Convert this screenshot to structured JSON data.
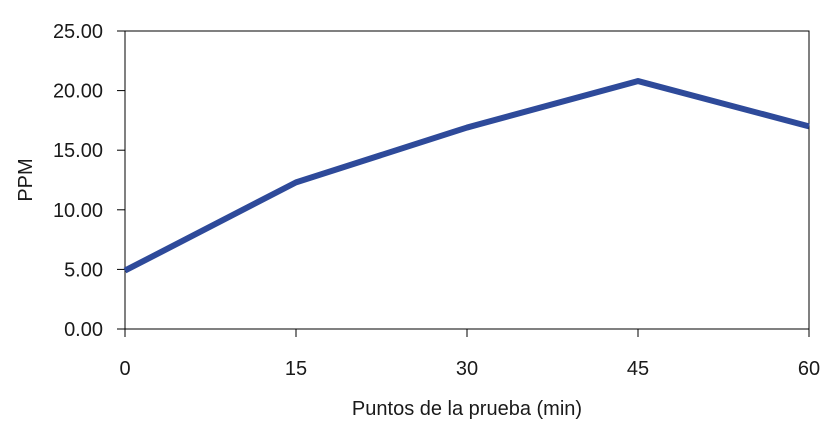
{
  "chart_data": {
    "type": "line",
    "title": "",
    "xlabel": "Puntos de la prueba (min)",
    "ylabel": "PPM",
    "x": [
      0,
      15,
      30,
      45,
      60
    ],
    "x_tick_labels": [
      "0",
      "15",
      "30",
      "45",
      "60"
    ],
    "y_tick_labels": [
      "0.00",
      "5.00",
      "10.00",
      "15.00",
      "20.00",
      "25.00"
    ],
    "y_ticks": [
      0,
      5,
      10,
      15,
      20,
      25
    ],
    "xlim": [
      0,
      60
    ],
    "ylim": [
      0,
      25
    ],
    "grid": false,
    "legend": "none",
    "series": [
      {
        "values": [
          4.9,
          12.3,
          16.9,
          20.8,
          17.0
        ],
        "color": "#2e4a9a"
      }
    ]
  }
}
